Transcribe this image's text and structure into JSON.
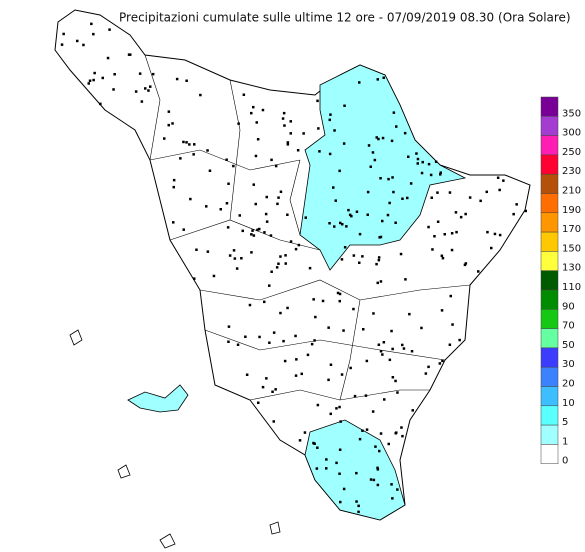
{
  "title": "Precipitazioni cumulate sulle ultime 12 ore - 07/09/2019 08.30 (Ora Solare)",
  "legend": [
    {
      "label": "350",
      "color": "#780096"
    },
    {
      "label": "300",
      "color": "#a43cd2"
    },
    {
      "label": "250",
      "color": "#ff1eb4"
    },
    {
      "label": "230",
      "color": "#ff0032"
    },
    {
      "label": "210",
      "color": "#b4500a"
    },
    {
      "label": "190",
      "color": "#ff6e00"
    },
    {
      "label": "170",
      "color": "#ff9600"
    },
    {
      "label": "150",
      "color": "#ffc800"
    },
    {
      "label": "130",
      "color": "#ffff3c"
    },
    {
      "label": "110",
      "color": "#005a00"
    },
    {
      "label": "90",
      "color": "#008c00"
    },
    {
      "label": "70",
      "color": "#14c814"
    },
    {
      "label": "50",
      "color": "#64ffa0"
    },
    {
      "label": "30",
      "color": "#3c3cff"
    },
    {
      "label": "20",
      "color": "#3c82ff"
    },
    {
      "label": "10",
      "color": "#3cbeff"
    },
    {
      "label": "5",
      "color": "#5affff"
    },
    {
      "label": "1",
      "color": "#a0ffff"
    },
    {
      "label": "0",
      "color": "#ffffff"
    }
  ]
}
